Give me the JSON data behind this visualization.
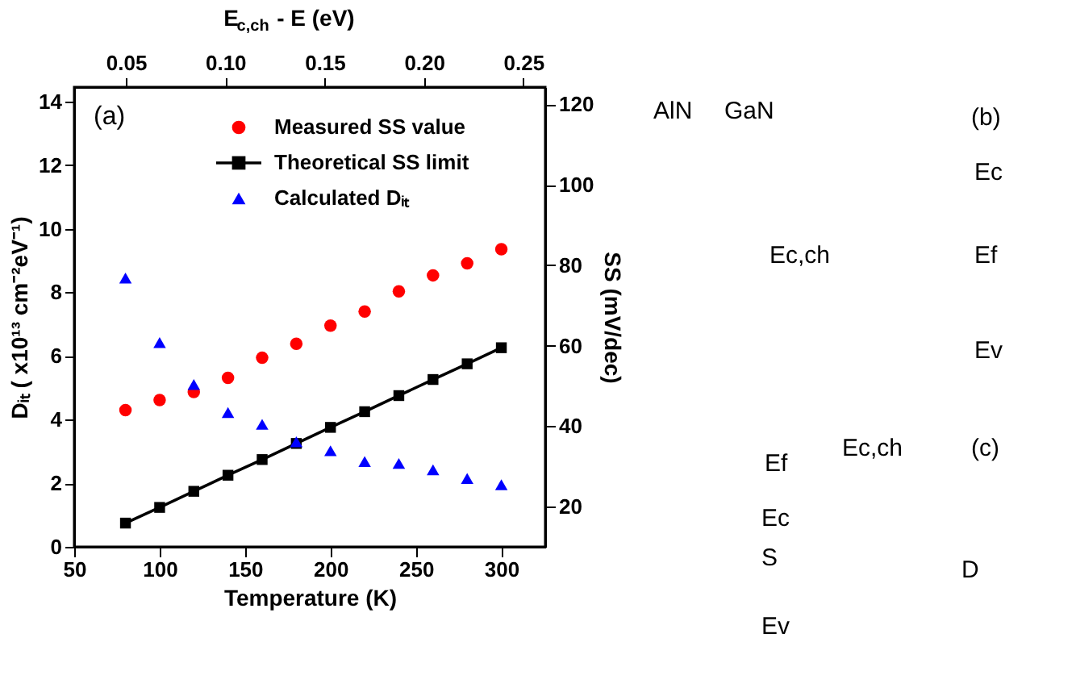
{
  "chart_data": [
    {
      "type": "scatter",
      "x": [
        80,
        100,
        120,
        140,
        160,
        180,
        200,
        220,
        240,
        260,
        280,
        300
      ],
      "xlim": [
        50,
        325.7
      ],
      "xticks": [
        50,
        100,
        150,
        200,
        250,
        300
      ],
      "ylim": [
        0,
        14.45
      ],
      "yticks": [
        0,
        2,
        4,
        6,
        8,
        10,
        12,
        14
      ],
      "y2lim": [
        10,
        124.3
      ],
      "y2ticks": [
        20,
        40,
        60,
        80,
        100,
        120
      ],
      "x2lim": [
        0.024,
        0.261
      ],
      "x2ticks": [
        {
          "value": 0.05,
          "label": "0.05"
        },
        {
          "value": 0.1,
          "label": "0.10"
        },
        {
          "value": 0.15,
          "label": "0.15"
        },
        {
          "value": 0.2,
          "label": "0.20"
        },
        {
          "value": 0.25,
          "label": "0.25"
        }
      ],
      "xlabel": "Temperature (K)",
      "ylabel": "Dᵢₜ ( x10¹³ cm⁻²eV⁻¹)",
      "y2label": "SS (mV/dec)",
      "x2label": "E$_{c,ch}$ - E (eV)",
      "legend": "top right",
      "grid": false,
      "annotations": [
        "(a)"
      ],
      "series": [
        {
          "name": "Measured SS value",
          "color": "#ff0000",
          "axis": "y2",
          "marker": "circle",
          "values": [
            44,
            46.5,
            48.5,
            52,
            57,
            60.5,
            65,
            68.5,
            73.5,
            77.5,
            80.5,
            84
          ]
        },
        {
          "name": "Theoretical SS limit",
          "type": "line",
          "color": "#000000",
          "axis": "y2",
          "marker": "square",
          "line_style": "solid",
          "values": [
            15.9,
            19.8,
            23.8,
            27.8,
            31.7,
            35.7,
            39.7,
            43.6,
            47.6,
            51.6,
            55.5,
            59.5
          ]
        },
        {
          "name": "Calculated Dᵢₜ",
          "color": "#0000ff",
          "marker": "triangle",
          "values": [
            8.45,
            6.42,
            5.1,
            4.22,
            3.85,
            3.3,
            3.02,
            2.68,
            2.62,
            2.42,
            2.15,
            1.95
          ]
        }
      ]
    },
    {
      "type": "other",
      "annotations": [
        "AlN",
        "GaN",
        "(b)",
        "Ec",
        "Ec,ch",
        "Ef",
        "Ev",
        "(c)",
        "Ef",
        "Ec,ch",
        "Ec",
        "S",
        "D",
        "Ev"
      ]
    }
  ]
}
